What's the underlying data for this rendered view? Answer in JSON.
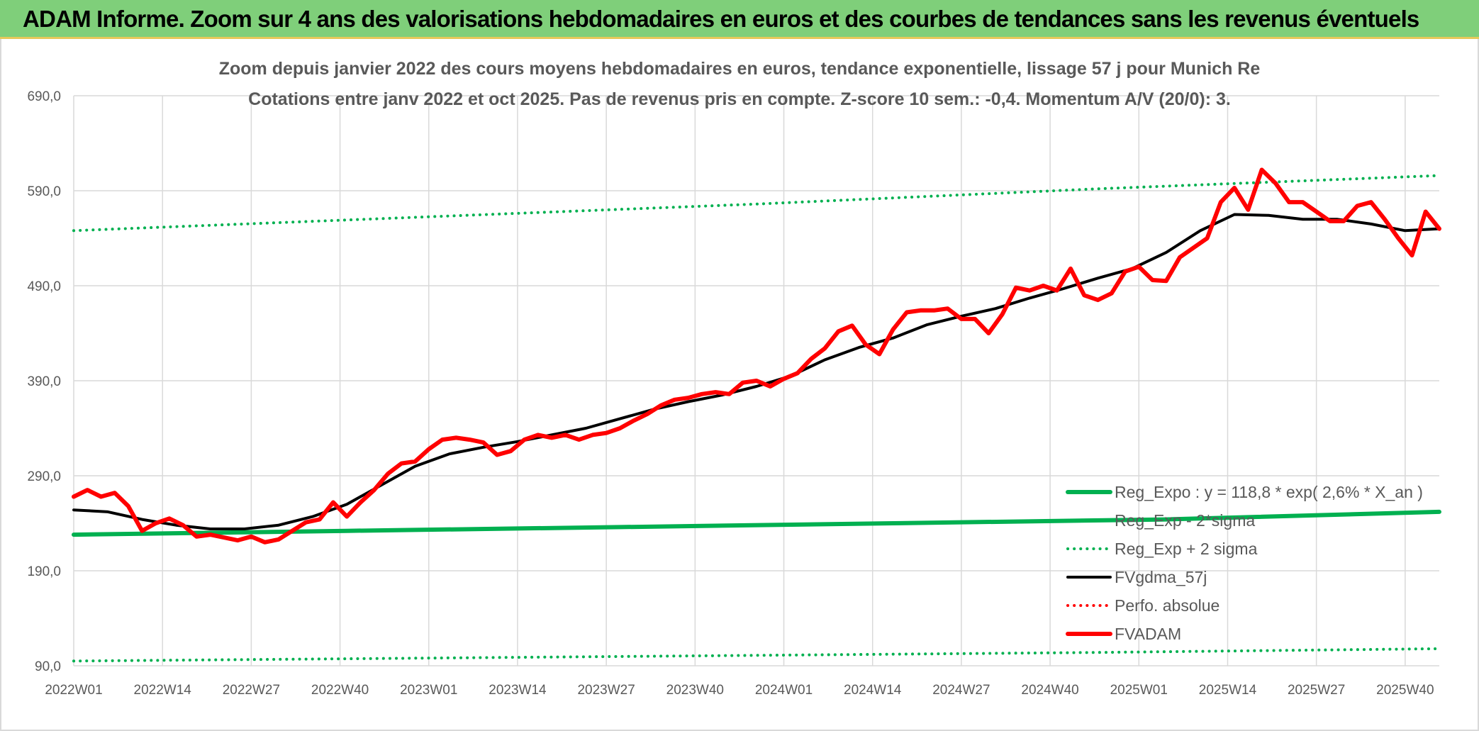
{
  "banner": {
    "title": "ADAM Informe. Zoom sur 4 ans des valorisations hebdomadaires en euros et des courbes de tendances sans les revenus éventuels"
  },
  "chart_data": {
    "type": "line",
    "title": "Zoom depuis janvier 2022 des cours moyens hebdomadaires en euros, tendance exponentielle, lissage 57 j pour Munich Re",
    "subtitle": "Cotations entre janv 2022 et oct 2025. Pas de revenus pris en compte. Z-score 10 sem.: -0,4. Momentum A/V (20/0): 3.",
    "xlabel": "",
    "ylabel": "",
    "ylim": [
      90,
      690
    ],
    "y_ticks": [
      90,
      190,
      290,
      390,
      490,
      590,
      690
    ],
    "y_tick_labels": [
      "90,0",
      "190,0",
      "290,0",
      "390,0",
      "490,0",
      "590,0",
      "690,0"
    ],
    "x_tick_labels": [
      "2022W01",
      "2022W14",
      "2022W27",
      "2022W40",
      "2023W01",
      "2023W14",
      "2023W27",
      "2023W40",
      "2024W01",
      "2024W14",
      "2024W27",
      "2024W40",
      "2025W01",
      "2025W14",
      "2025W27",
      "2025W40"
    ],
    "x_tick_weeks": [
      0,
      13,
      26,
      39,
      52,
      65,
      78,
      91,
      104,
      117,
      130,
      143,
      156,
      169,
      182,
      195
    ],
    "x_range": [
      0,
      200
    ],
    "grid": true,
    "legend_position": "bottom-right",
    "series": [
      {
        "name": "Reg_Expo : y = 118,8 * exp( 2,6% *  X_an )",
        "color": "#00b050",
        "style": "solid",
        "width": 6,
        "x": [
          0,
          40,
          80,
          120,
          160,
          200
        ],
        "values": [
          228,
          232,
          236,
          240,
          244,
          252
        ]
      },
      {
        "name": "Reg_Exp - 2*sigma",
        "color": "#00b050",
        "style": "dotted",
        "width": 4,
        "x": [
          0,
          50,
          100,
          150,
          200
        ],
        "values": [
          95,
          98,
          101,
          104,
          108
        ]
      },
      {
        "name": "Reg_Exp + 2 sigma",
        "color": "#00b050",
        "style": "dotted",
        "width": 4,
        "x": [
          0,
          50,
          100,
          150,
          200
        ],
        "values": [
          548,
          562,
          576,
          592,
          606
        ]
      },
      {
        "name": "FVgdma_57j",
        "color": "#000000",
        "style": "solid",
        "width": 4,
        "x": [
          0,
          5,
          10,
          15,
          20,
          25,
          30,
          35,
          40,
          45,
          50,
          55,
          60,
          65,
          70,
          75,
          80,
          85,
          90,
          95,
          100,
          105,
          110,
          115,
          120,
          125,
          130,
          135,
          140,
          145,
          150,
          155,
          160,
          165,
          170,
          175,
          180,
          185,
          190,
          195,
          200
        ],
        "values": [
          254,
          252,
          244,
          238,
          234,
          234,
          238,
          247,
          260,
          280,
          300,
          313,
          320,
          326,
          333,
          340,
          350,
          360,
          368,
          375,
          384,
          395,
          412,
          425,
          435,
          449,
          458,
          466,
          477,
          487,
          498,
          508,
          525,
          548,
          565,
          564,
          560,
          560,
          555,
          548,
          550
        ]
      },
      {
        "name": "Perfo. absolue",
        "color": "#ff0000",
        "style": "dotted",
        "width": 4,
        "x": [],
        "values": []
      },
      {
        "name": "FVADAM",
        "color": "#ff0000",
        "style": "solid",
        "width": 6,
        "x": [
          0,
          2,
          4,
          6,
          8,
          10,
          12,
          14,
          16,
          18,
          20,
          22,
          24,
          26,
          28,
          30,
          32,
          34,
          36,
          38,
          40,
          42,
          44,
          46,
          48,
          50,
          52,
          54,
          56,
          58,
          60,
          62,
          64,
          66,
          68,
          70,
          72,
          74,
          76,
          78,
          80,
          82,
          84,
          86,
          88,
          90,
          92,
          94,
          96,
          98,
          100,
          102,
          104,
          106,
          108,
          110,
          112,
          114,
          116,
          118,
          120,
          122,
          124,
          126,
          128,
          130,
          132,
          134,
          136,
          138,
          140,
          142,
          144,
          146,
          148,
          150,
          152,
          154,
          156,
          158,
          160,
          162,
          164,
          166,
          168,
          170,
          172,
          174,
          176,
          178,
          180,
          182,
          184,
          186,
          188,
          190,
          192,
          194,
          196,
          198,
          200
        ],
        "values": [
          268,
          275,
          268,
          272,
          258,
          232,
          240,
          245,
          238,
          226,
          228,
          225,
          222,
          226,
          220,
          223,
          232,
          241,
          244,
          262,
          247,
          262,
          275,
          292,
          303,
          305,
          318,
          328,
          330,
          328,
          325,
          312,
          316,
          328,
          333,
          330,
          333,
          328,
          333,
          335,
          340,
          348,
          355,
          364,
          370,
          372,
          376,
          378,
          376,
          388,
          390,
          384,
          392,
          398,
          413,
          424,
          442,
          448,
          428,
          418,
          444,
          462,
          464,
          464,
          466,
          455,
          455,
          440,
          460,
          488,
          485,
          490,
          485,
          508,
          480,
          475,
          482,
          505,
          510,
          496,
          495,
          520,
          530,
          540,
          578,
          593,
          570,
          612,
          598,
          578,
          578,
          568,
          558,
          558,
          574,
          578,
          560,
          540,
          522,
          568,
          550
        ]
      }
    ]
  }
}
